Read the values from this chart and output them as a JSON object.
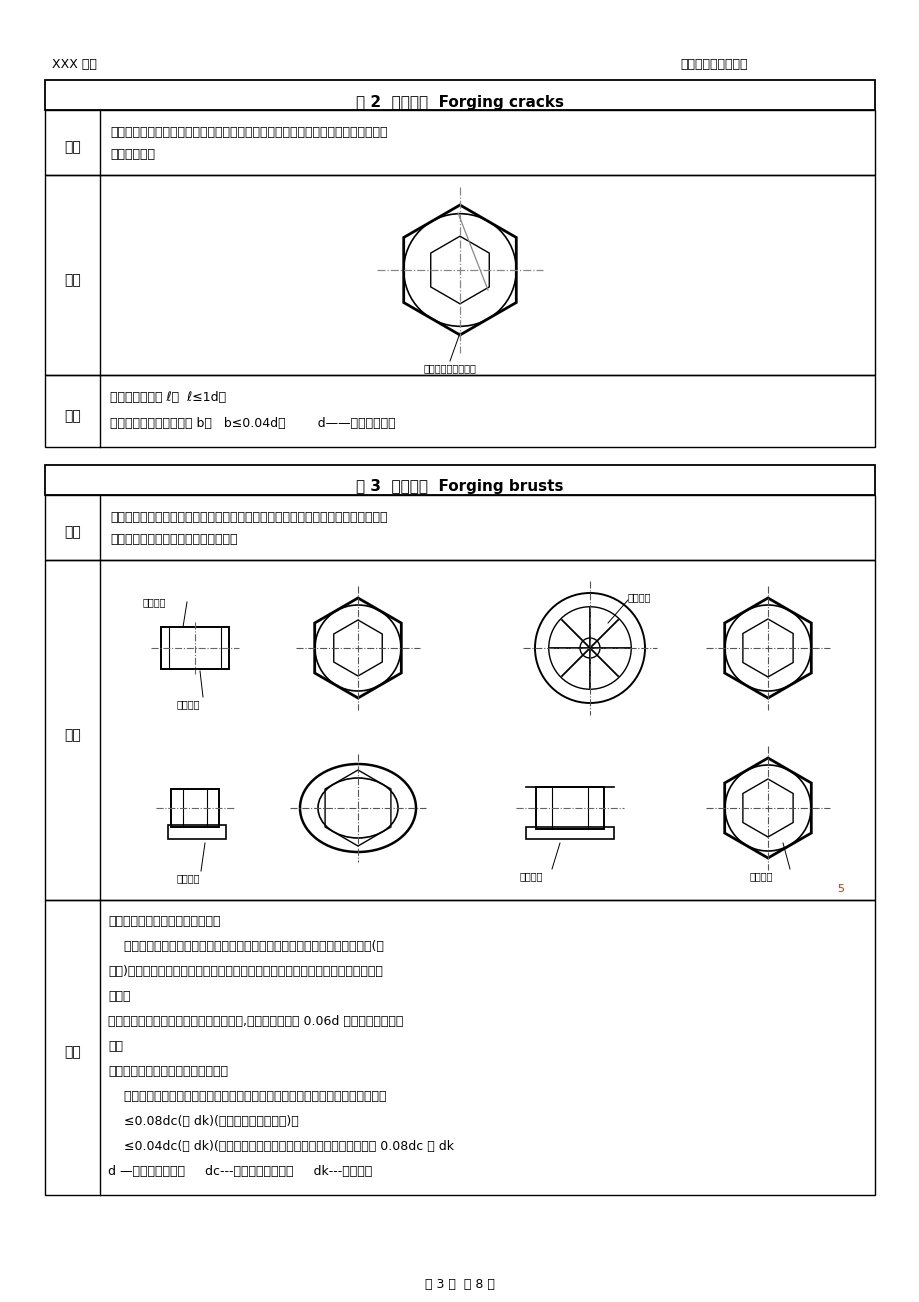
{
  "page_width": 9.2,
  "page_height": 13.02,
  "bg_color": "#ffffff",
  "header_left": "XXX 公司",
  "header_right": "紧固件表面缺陷检测",
  "footer": "第 3 页  共 8 页",
  "table1_title": "表 2  锻造裂缝  Forging cracks",
  "table1_row1_label": "原因",
  "table1_row1_text": "锻造裂缝可能在切料或锻造工序中产生，并位于螺栓和螺钉的头部顶面，以及凹穴头\n部隆起部分。",
  "table1_row2_label": "外观",
  "table1_row2_caption": "头部顶面的锻造裂缝",
  "table1_row3_label": "极限",
  "table1_row3_text1": "锻造裂缝的长度 ℓ：  ℓ≤1d；",
  "table1_row3_text2": "锻造裂缝的深度或者宽度 b：   b≤0.04d；        d——螺纹公称直径",
  "table2_title": "表 3  锻造爆裂  Forging brusts",
  "table2_row1_label": "原因",
  "table2_row1_text": "在锻造过程中可能产生锻造爆裂，例如在螺栓和螺钉六角头的对角上，或在法兰面或\n圆周上，或在凹穴头部隆起部分出现。",
  "table2_row2_label": "外观",
  "table2_row3_label": "极限",
  "table2_row3_line0": "六角头及六角法兰面螺栓和螺钉：",
  "table2_row3_line1": "    六角法兰面螺栓和螺钉的法兰面上的锻造爆裂，不应延伸到头部顶面的顶圆(倒",
  "table2_row3_line2": "角圆)或头下支承面内。对角上的锻造爆裂，不应使对角宽度减小到低于规定的最小",
  "table2_row3_line3": "尺寸。",
  "table2_row3_line4": "螺栓和螺钉凹穴头部隆起部分的锻造爆裂,其宽度不应超过 0.06d 或深度低于凹穴部",
  "table2_row3_line5": "分。",
  "table2_row3_line6": "圆头螺栓和螺钉及六角法兰面螺栓：",
  "table2_row3_line7": "    螺栓和螺钉及六角法兰面和圆头圆周上的锻造爆裂的宽度，不应超过下列极限：",
  "table2_row3_line8": "    ≤0.08dc(或 dk)(只有一个锻造爆裂时)；",
  "table2_row3_line9": "    ≤0.04dc(或 dk)(有两个或更多的锻造爆裂时，其中有一个允许到 0.08dc 或 dk",
  "table2_row3_line10": "d —螺纹公称直径；     dc---头部或法兰直径；     dk---头部直径",
  "label_duanzao_baolie": "锻造爆裂",
  "label_duanzao_liefeng": "头部顶面的锻造裂缝"
}
